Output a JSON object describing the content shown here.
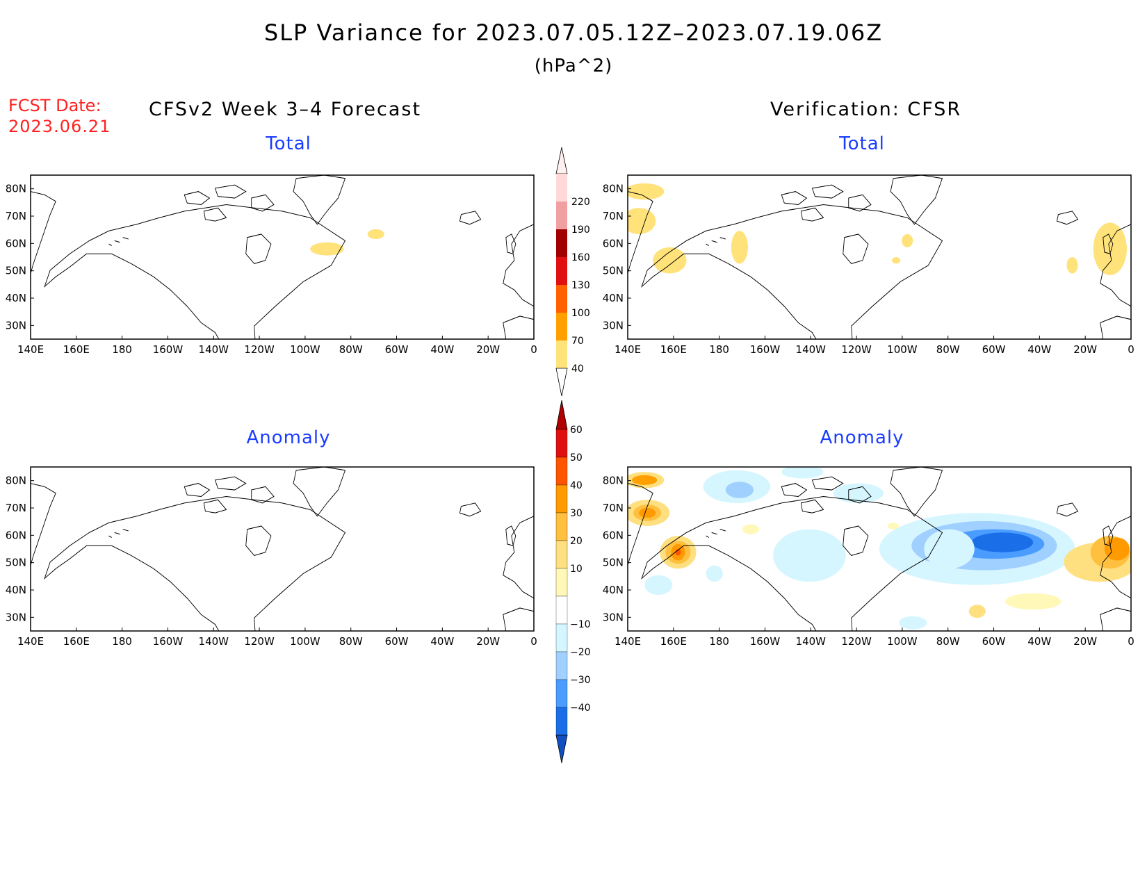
{
  "figure": {
    "title": "SLP Variance for 2023.07.05.12Z–2023.07.19.06Z",
    "units": "(hPa^2)",
    "fcst_date_label": "FCST Date:",
    "fcst_date": "2023.06.21",
    "left_header": "CFSv2 Week 3–4 Forecast",
    "right_header": "Verification: CFSR"
  },
  "panels": [
    {
      "id": "forecast-total",
      "title": "Total"
    },
    {
      "id": "verification-total",
      "title": "Total"
    },
    {
      "id": "forecast-anomaly",
      "title": "Anomaly"
    },
    {
      "id": "verification-anomaly",
      "title": "Anomaly"
    }
  ],
  "axes": {
    "x_ticks": [
      "140E",
      "160E",
      "180",
      "160W",
      "140W",
      "120W",
      "100W",
      "80W",
      "60W",
      "40W",
      "20W",
      "0"
    ],
    "y_ticks": [
      "80N",
      "70N",
      "60N",
      "50N",
      "40N",
      "30N"
    ],
    "lon_range": [
      140,
      360
    ],
    "lat_range": [
      25,
      85
    ]
  },
  "colorbars": {
    "total": {
      "levels": [
        "40",
        "70",
        "100",
        "130",
        "160",
        "190",
        "220"
      ],
      "colors": [
        "#ffe27a",
        "#ffa000",
        "#ff6000",
        "#e01010",
        "#a00000",
        "#f0a0a0",
        "#ffd8d8"
      ]
    },
    "anomaly": {
      "levels": [
        "60",
        "50",
        "40",
        "30",
        "20",
        "10",
        "−10",
        "−20",
        "−30",
        "−40"
      ],
      "colors": [
        "#b00000",
        "#e01010",
        "#ff5500",
        "#ff9a00",
        "#ffc040",
        "#ffe080",
        "#fff8b8",
        "#ffffff",
        "#d6f6ff",
        "#a0d0ff",
        "#4a9cff",
        "#1a6ee8",
        "#1050c0"
      ]
    }
  },
  "colors": {
    "fcst_label": "#ff2020",
    "panel_title": "#1a3cff",
    "coast": "#000000"
  }
}
